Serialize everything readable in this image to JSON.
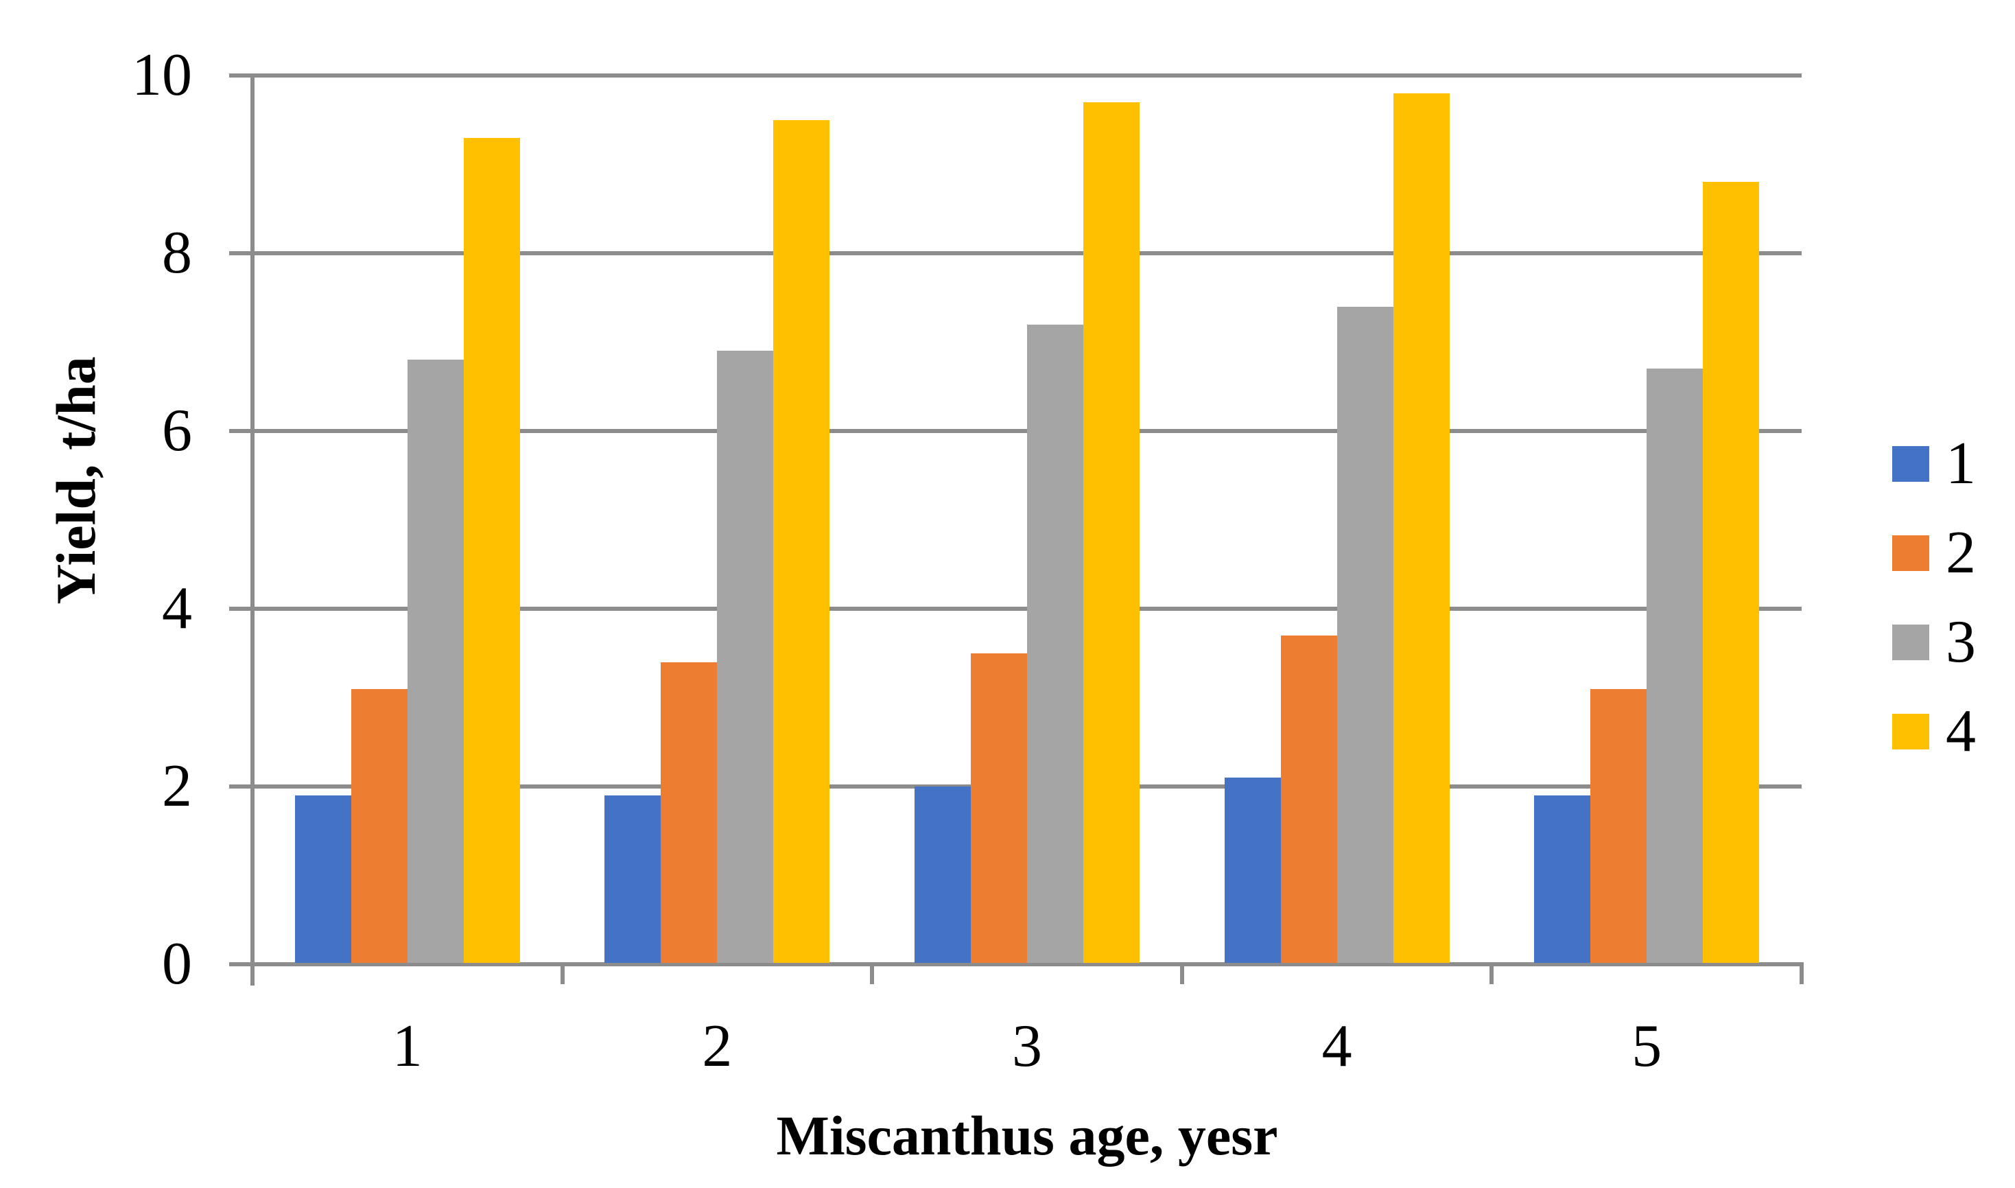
{
  "chart_data": {
    "type": "bar",
    "categories": [
      "1",
      "2",
      "3",
      "4",
      "5"
    ],
    "series": [
      {
        "name": "1",
        "color": "#4472C4",
        "values": [
          1.9,
          1.9,
          2.0,
          2.1,
          1.9
        ]
      },
      {
        "name": "2",
        "color": "#ED7D31",
        "values": [
          3.1,
          3.4,
          3.5,
          3.7,
          3.1
        ]
      },
      {
        "name": "3",
        "color": "#A5A5A5",
        "values": [
          6.8,
          6.9,
          7.2,
          7.4,
          6.7
        ]
      },
      {
        "name": "4",
        "color": "#FFC000",
        "values": [
          9.3,
          9.5,
          9.7,
          9.8,
          8.8
        ]
      }
    ],
    "xlabel": "Miscanthus age, yesr",
    "ylabel": "Yield, t/ha",
    "ylim": [
      0,
      10
    ],
    "yticks": [
      0,
      2,
      4,
      6,
      8,
      10
    ],
    "grid": true,
    "legend_position": "right",
    "axis_color": "#8C8C8C",
    "background_color": "#FFFFFF"
  }
}
